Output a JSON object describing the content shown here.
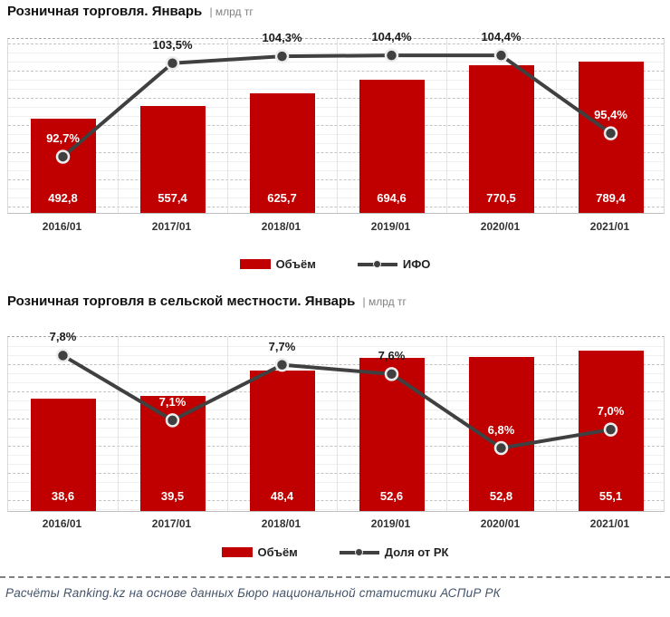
{
  "colors": {
    "bar": "#C00000",
    "line": "#404040",
    "marker_fill": "#404040",
    "marker_ring": "#EDEDED",
    "label_on_bar": "#FFFFFF",
    "label_on_bg": "#1A1A1A",
    "unit_text": "#808080",
    "category_text": "#333333",
    "footer_text": "#44546A"
  },
  "chart_data": [
    {
      "type": "bar+line",
      "title": "Розничная торговля. Январь",
      "unit_label": "| млрд тг",
      "categories": [
        "2016/01",
        "2017/01",
        "2018/01",
        "2019/01",
        "2020/01",
        "2021/01"
      ],
      "series": [
        {
          "name": "Объём",
          "type": "bar",
          "values": [
            492.8,
            557.4,
            625.7,
            694.6,
            770.5,
            789.4
          ],
          "labels": [
            "492,8",
            "557,4",
            "625,7",
            "694,6",
            "770,5",
            "789,4"
          ]
        },
        {
          "name": "ИФО",
          "type": "line",
          "values": [
            92.7,
            103.5,
            104.3,
            104.4,
            104.4,
            95.4
          ],
          "labels": [
            "92,7%",
            "103,5%",
            "104,3%",
            "104,4%",
            "104,4%",
            "95,4%"
          ],
          "label_on_bar": [
            true,
            false,
            false,
            false,
            false,
            true
          ]
        }
      ],
      "bar_axis": {
        "min": 0,
        "max": 917
      },
      "line_axis": {
        "min": 86,
        "max": 106.3
      },
      "grid": {
        "minor_solid": true,
        "major_dashed": true,
        "major_offset": 5,
        "grid_on": true
      },
      "legend_position": "bottom"
    },
    {
      "type": "bar+line",
      "title": "Розничная торговля в сельской местности. Январь",
      "unit_label": "| млрд тг",
      "categories": [
        "2016/01",
        "2017/01",
        "2018/01",
        "2019/01",
        "2020/01",
        "2021/01"
      ],
      "series": [
        {
          "name": "Объём",
          "type": "bar",
          "values": [
            38.6,
            39.5,
            48.4,
            52.6,
            52.8,
            55.1
          ],
          "labels": [
            "38,6",
            "39,5",
            "48,4",
            "52,6",
            "52,8",
            "55,1"
          ]
        },
        {
          "name": "Доля от РК",
          "type": "line",
          "values": [
            7.8,
            7.1,
            7.7,
            7.6,
            6.8,
            7.0
          ],
          "labels": [
            "7,8%",
            "7,1%",
            "7,7%",
            "7,6%",
            "6,8%",
            "7,0%"
          ],
          "label_on_bar": [
            false,
            true,
            false,
            false,
            true,
            true
          ]
        }
      ],
      "bar_axis": {
        "min": 0,
        "max": 60.4
      },
      "line_axis": {
        "min": 6.1,
        "max": 8.0
      },
      "grid": {
        "minor_solid": true,
        "major_dashed": true,
        "major_offset": 30,
        "grid_on": true
      },
      "legend_position": "bottom"
    }
  ],
  "footer": {
    "text": "Расчёты Ranking.kz на основе данных Бюро национальной статистики АСПиР РК"
  }
}
